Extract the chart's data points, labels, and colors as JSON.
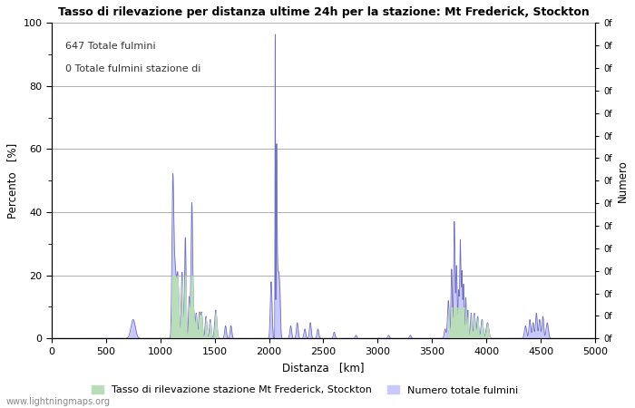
{
  "title": "Tasso di rilevazione per distanza ultime 24h per la stazione: Mt Frederick, Stockton",
  "xlabel": "Distanza   [km]",
  "ylabel_left": "Percento   [%]",
  "ylabel_right": "Numero",
  "annotation_line1": "647 Totale fulmini",
  "annotation_line2": "0 Totale fulmini stazione di",
  "legend_label1": "Tasso di rilevazione stazione Mt Frederick, Stockton",
  "legend_label2": "Numero totale fulmini",
  "color_fill": "#c8c8ff",
  "color_green": "#b8ddb8",
  "color_line": "#7070c0",
  "watermark": "www.lightningmaps.org",
  "xlim": [
    0,
    5000
  ],
  "ylim": [
    0,
    100
  ],
  "background_color": "#ffffff",
  "grid_color": "#b0b0b0"
}
